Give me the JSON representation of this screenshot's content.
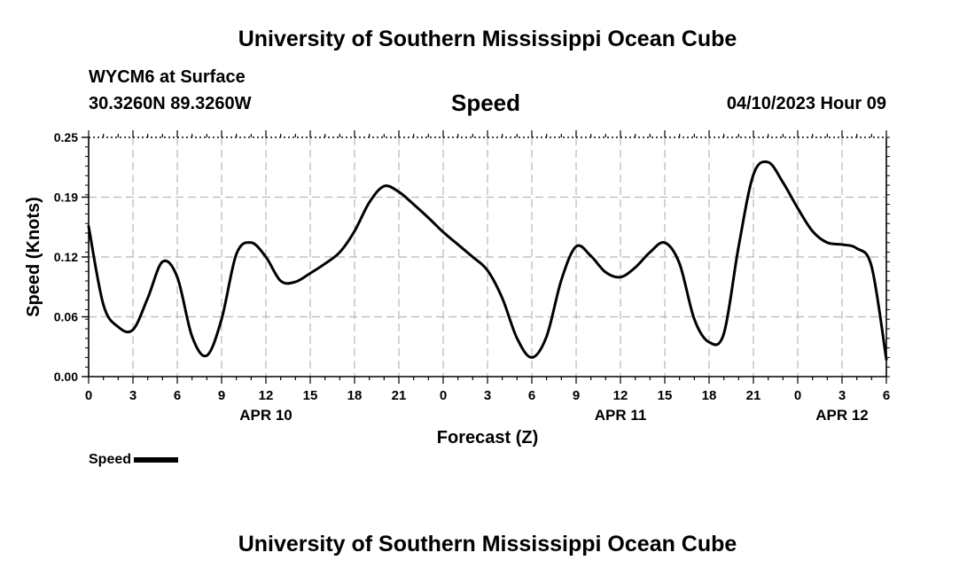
{
  "header": {
    "title_top": "University of Southern Mississippi Ocean Cube",
    "station": "WYCM6 at Surface",
    "coords": "30.3260N  89.3260W",
    "variable": "Speed",
    "datetime": "04/10/2023 Hour 09",
    "title_bottom": "University of Southern Mississippi Ocean Cube"
  },
  "legend": {
    "label": "Speed",
    "color": "#000000"
  },
  "chart_data": {
    "type": "line",
    "title": "Speed",
    "xlabel": "Forecast (Z)",
    "ylabel": "Speed (Knots)",
    "ylim": [
      0,
      0.25
    ],
    "yticks": [
      "0.00",
      "0.06",
      "0.12",
      "0.19",
      "0.25"
    ],
    "ytick_values": [
      0,
      0.0625,
      0.125,
      0.1875,
      0.25
    ],
    "xlim": [
      0,
      54
    ],
    "xtick_labels": [
      "0",
      "3",
      "6",
      "9",
      "12",
      "15",
      "18",
      "21",
      "0",
      "3",
      "6",
      "9",
      "12",
      "15",
      "18",
      "21",
      "0",
      "3",
      "6"
    ],
    "day_labels": [
      {
        "text": "APR 10",
        "at": 12
      },
      {
        "text": "APR 11",
        "at": 36
      },
      {
        "text": "APR 12",
        "at": 51
      }
    ],
    "grid": true,
    "series": [
      {
        "name": "Speed",
        "x": [
          0,
          1,
          2,
          3,
          4,
          5,
          6,
          7,
          8,
          9,
          10,
          11,
          12,
          13,
          14,
          15,
          16,
          17,
          18,
          19,
          20,
          21,
          22,
          23,
          24,
          25,
          26,
          27,
          28,
          29,
          30,
          31,
          32,
          33,
          34,
          35,
          36,
          37,
          38,
          39,
          40,
          41,
          42,
          43,
          44,
          45,
          46,
          47,
          48,
          49,
          50,
          51,
          52,
          53,
          54
        ],
        "values": [
          0.157,
          0.075,
          0.052,
          0.049,
          0.082,
          0.12,
          0.104,
          0.042,
          0.022,
          0.06,
          0.128,
          0.14,
          0.125,
          0.1,
          0.099,
          0.108,
          0.118,
          0.13,
          0.152,
          0.182,
          0.199,
          0.193,
          0.18,
          0.166,
          0.151,
          0.138,
          0.125,
          0.111,
          0.082,
          0.04,
          0.02,
          0.042,
          0.101,
          0.136,
          0.126,
          0.109,
          0.104,
          0.114,
          0.13,
          0.14,
          0.118,
          0.06,
          0.036,
          0.045,
          0.136,
          0.211,
          0.224,
          0.203,
          0.176,
          0.152,
          0.14,
          0.138,
          0.134,
          0.115,
          0.018
        ]
      }
    ]
  }
}
